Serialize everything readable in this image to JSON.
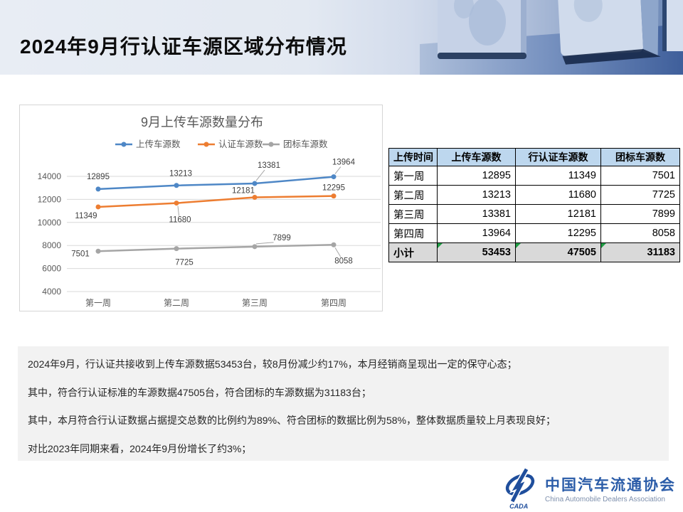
{
  "header": {
    "title": "2024年9月行认证车源区域分布情况"
  },
  "chart_data": {
    "type": "line",
    "title": "9月上传车源数量分布",
    "categories": [
      "第一周",
      "第二周",
      "第三周",
      "第四周"
    ],
    "series": [
      {
        "name": "上传车源数",
        "color": "#4E87C6",
        "values": [
          12895,
          13213,
          13381,
          13964
        ]
      },
      {
        "name": "认证车源数",
        "color": "#ED7D31",
        "values": [
          11349,
          11680,
          12181,
          12295
        ]
      },
      {
        "name": "团标车源数",
        "color": "#A5A5A5",
        "values": [
          7501,
          7725,
          7899,
          8058
        ]
      }
    ],
    "xlabel": "",
    "ylabel": "",
    "ylim": [
      4000,
      14000
    ],
    "yticks": [
      4000,
      6000,
      8000,
      10000,
      12000,
      14000
    ],
    "grid": true,
    "legend_position": "top"
  },
  "table": {
    "columns": [
      "上传时间",
      "上传车源数",
      "行认证车源数",
      "团标车源数"
    ],
    "rows": [
      [
        "第一周",
        12895,
        11349,
        7501
      ],
      [
        "第二周",
        13213,
        11680,
        7725
      ],
      [
        "第三周",
        13381,
        12181,
        7899
      ],
      [
        "第四周",
        13964,
        12295,
        8058
      ]
    ],
    "subtotal": [
      "小计",
      53453,
      47505,
      31183
    ]
  },
  "summary": {
    "lines": [
      "2024年9月，行认证共接收到上传车源数据53453台，较8月份减少约17%，本月经销商呈现出一定的保守心态；",
      "其中，符合行认证标准的车源数据47505台，符合团标的车源数据为31183台；",
      "其中，本月符合行认证数据占据提交总数的比例约为89%、符合团标的数据比例为58%，整体数据质量较上月表现良好；",
      "对比2023年同期来看，2024年9月份增长了约3%；"
    ]
  },
  "footer_logo": {
    "acronym": "CADA",
    "name_cn": "中国汽车流通协会",
    "name_en": "China Automobile Dealers Association"
  },
  "colors": {
    "series_blue": "#4E87C6",
    "series_orange": "#ED7D31",
    "series_gray": "#A5A5A5",
    "table_header_bg": "#BDD7EE",
    "subtotal_row_bg": "#D9D9D9",
    "summary_bg": "#F2F2F2",
    "formula_flag_green": "#1F9D44",
    "logo_blue": "#1F4E9C",
    "banner_light": "#E8EDF4",
    "banner_dark": "#6A86B4"
  }
}
